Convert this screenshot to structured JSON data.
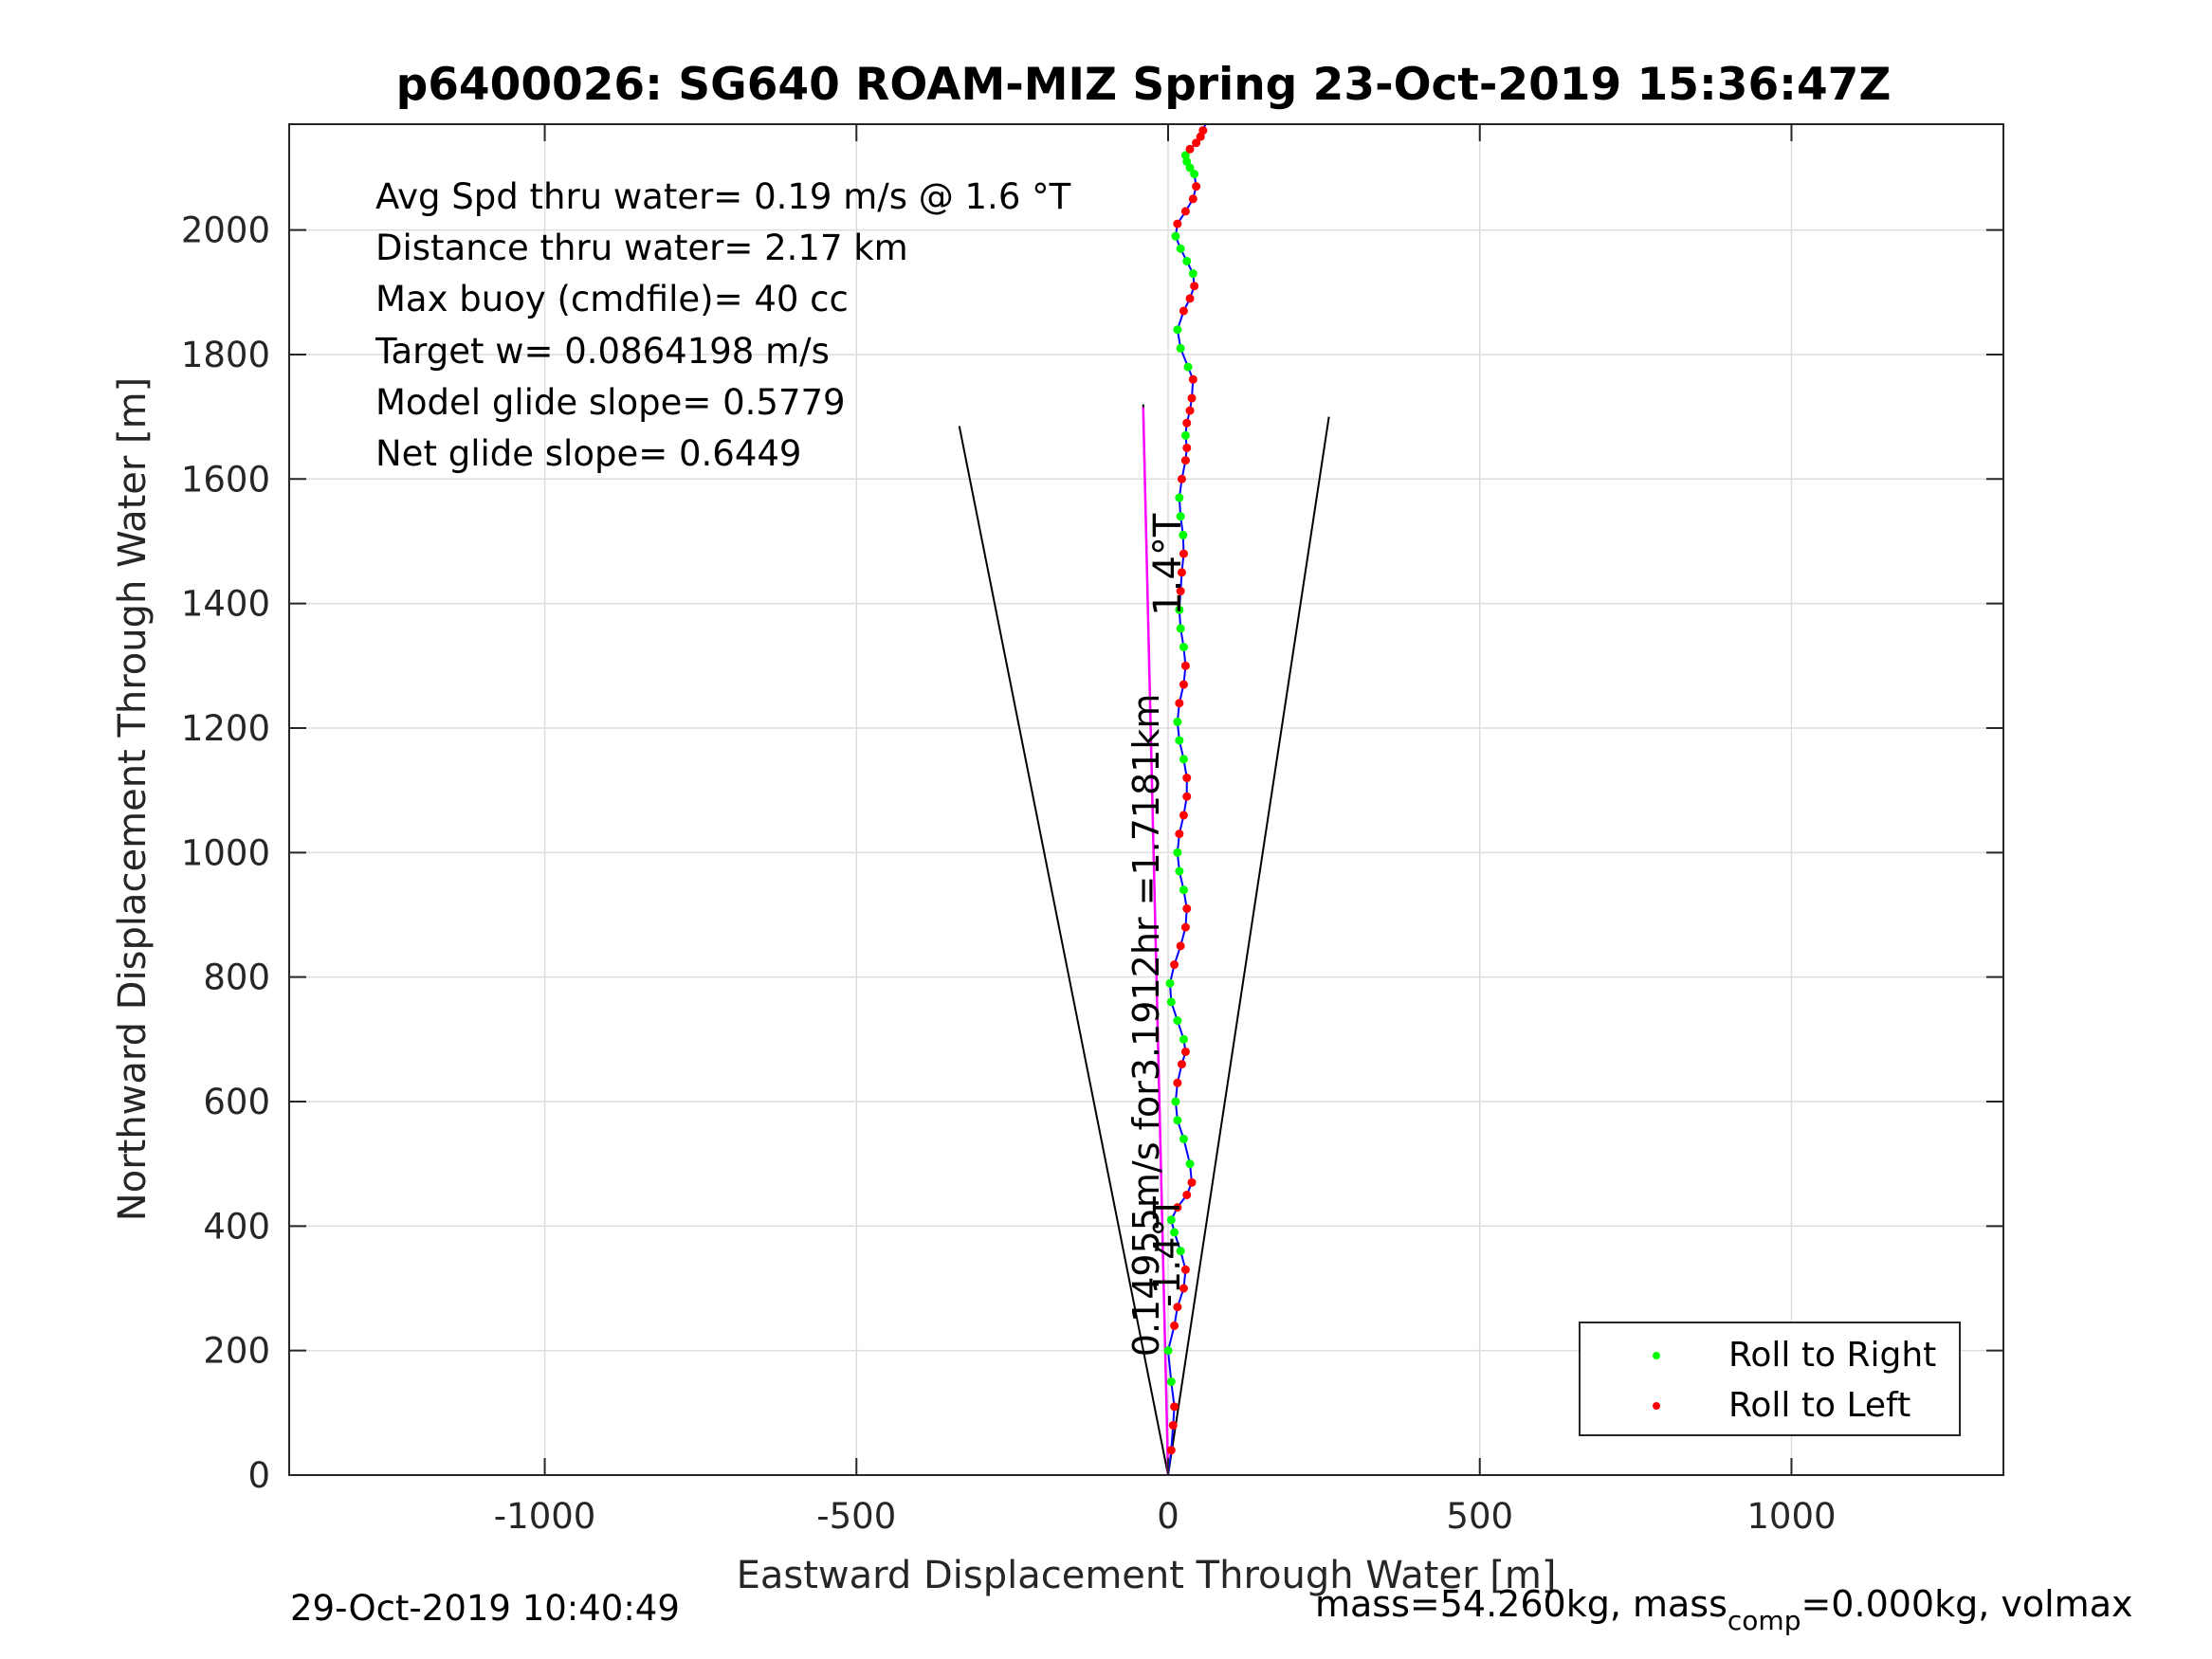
{
  "title": "p6400026: SG640 ROAM-MIZ Spring 23-Oct-2019 15:36:47Z",
  "stats": [
    "Avg Spd thru water=  0.19 m/s @   1.6 °T",
    "Distance thru water=  2.17 km",
    "Max buoy (cmdfile)= 40 cc",
    "Target w= 0.0864198 m/s",
    "Model glide slope= 0.5779",
    "Net glide slope= 0.6449"
  ],
  "footer": {
    "timestamp": "29-Oct-2019 10:40:49",
    "mass_text": "mass=54.260kg, mass",
    "mass_sub": "comp",
    "mass_rest": "=0.000kg, volmax"
  },
  "colors": {
    "track": "#0000ff",
    "current": "#ff00ff",
    "roll_right": "#00ff00",
    "roll_left": "#ff0000",
    "cone": "#000000",
    "grid": "#dddddd"
  },
  "chart_data": {
    "type": "line",
    "title": "p6400026: SG640 ROAM-MIZ Spring 23-Oct-2019 15:36:47Z",
    "xlabel": "Eastward Displacement Through Water [m]",
    "ylabel": "Northward Displacement Through Water [m]",
    "xlim": [
      -1410,
      1340
    ],
    "ylim": [
      0,
      2170
    ],
    "xticks": [
      -1000,
      -500,
      0,
      500,
      1000
    ],
    "xtick_labels": [
      "-1000",
      "-500",
      "0",
      "500",
      "1000"
    ],
    "yticks": [
      0,
      200,
      400,
      600,
      800,
      1000,
      1200,
      1400,
      1600,
      1800,
      2000
    ],
    "ytick_labels": [
      "0",
      "200",
      "400",
      "600",
      "800",
      "1000",
      "1200",
      "1400",
      "1600",
      "1800",
      "2000"
    ],
    "grid": true,
    "legend_position": "bottom-right",
    "legend": [
      {
        "label": "Roll to Right",
        "color": "#00ff00"
      },
      {
        "label": "Roll to Left",
        "color": "#ff0000"
      }
    ],
    "series": [
      {
        "color": "#0000ff",
        "x": [
          0,
          5,
          8,
          10,
          5,
          0,
          10,
          15,
          25,
          28,
          20,
          10,
          5,
          15,
          30,
          38,
          35,
          25,
          15,
          12,
          15,
          22,
          28,
          25,
          15,
          5,
          3,
          10,
          20,
          28,
          30,
          25,
          18,
          15,
          18,
          25,
          30,
          30,
          25,
          18,
          15,
          18,
          25,
          28,
          25,
          20,
          18,
          20,
          22,
          25,
          24,
          20,
          18,
          22,
          28,
          30,
          28,
          30,
          35,
          38,
          40,
          32,
          20,
          15,
          25,
          35,
          42,
          40,
          30,
          20,
          12,
          15,
          28,
          40,
          45,
          42,
          35,
          30,
          28,
          35,
          45,
          52,
          56,
          60
        ],
        "y": [
          0,
          40,
          80,
          110,
          150,
          200,
          240,
          270,
          300,
          330,
          360,
          390,
          410,
          430,
          450,
          470,
          500,
          540,
          570,
          600,
          630,
          660,
          680,
          700,
          730,
          760,
          790,
          820,
          850,
          880,
          910,
          940,
          970,
          1000,
          1030,
          1060,
          1090,
          1120,
          1150,
          1180,
          1210,
          1240,
          1270,
          1300,
          1330,
          1360,
          1390,
          1420,
          1450,
          1480,
          1510,
          1540,
          1570,
          1600,
          1630,
          1650,
          1670,
          1690,
          1710,
          1730,
          1760,
          1780,
          1810,
          1840,
          1870,
          1890,
          1910,
          1930,
          1950,
          1970,
          1990,
          2010,
          2030,
          2050,
          2070,
          2090,
          2100,
          2110,
          2120,
          2130,
          2140,
          2150,
          2160,
          2170
        ]
      },
      {
        "color": "#ff00ff",
        "x": [
          0,
          -40
        ],
        "y": [
          0,
          1715
        ]
      }
    ],
    "cone": {
      "color": "#000000",
      "left": {
        "x": [
          0,
          -335
        ],
        "y": [
          0,
          1685
        ]
      },
      "center": {
        "x": [
          0,
          -40
        ],
        "y": [
          0,
          1720
        ]
      },
      "right": {
        "x": [
          0,
          258
        ],
        "y": [
          0,
          1700
        ]
      }
    },
    "annotations": [
      {
        "text": "0.14955m/s for3.1912hr =1.7181km",
        "x": -15,
        "y": 190,
        "rotation": -90
      },
      {
        "text": "1.4°T",
        "x": 20,
        "y": 1380,
        "rotation": -90
      },
      {
        "text": "-1.4°T",
        "x": 18,
        "y": 270,
        "rotation": -90
      }
    ]
  }
}
